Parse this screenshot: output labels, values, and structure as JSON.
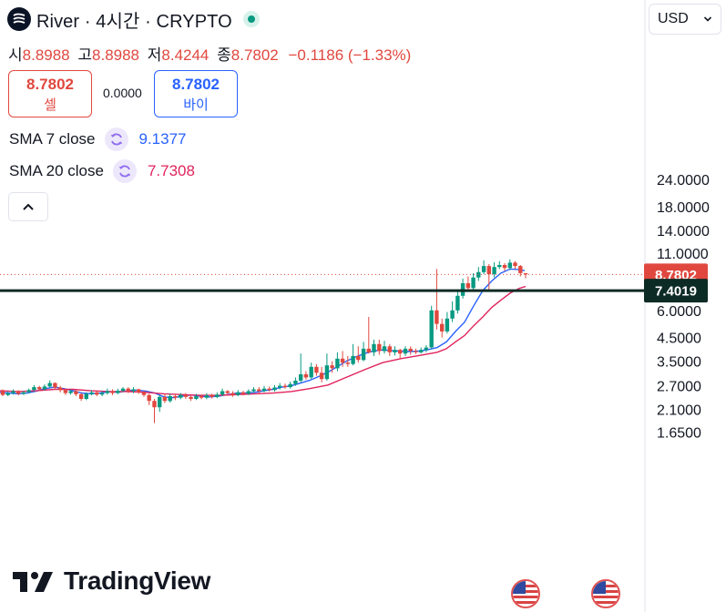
{
  "header": {
    "title": "River · 4시간 · CRYPTO",
    "ohlc": [
      {
        "label": "시",
        "value": "8.8988"
      },
      {
        "label": "고",
        "value": "8.8988"
      },
      {
        "label": "저",
        "value": "8.4244"
      },
      {
        "label": "종",
        "value": "8.7802"
      }
    ],
    "change": "−0.1186 (−1.33%)"
  },
  "trade": {
    "sell_price": "8.7802",
    "sell_label": "셀",
    "spread": "0.0000",
    "buy_price": "8.7802",
    "buy_label": "바이"
  },
  "indicators": [
    {
      "name": "SMA 7 close",
      "value": "9.1377",
      "color": "#2962ff"
    },
    {
      "name": "SMA 20 close",
      "value": "7.7308",
      "color": "#e0245e"
    }
  ],
  "currency": "USD",
  "brand": "TradingView",
  "colors": {
    "up": "#089981",
    "down": "#e0483f",
    "hline": "#0d2b25"
  },
  "chart_data": {
    "type": "candlestick",
    "yscale": "log",
    "ylim": [
      1.45,
      36
    ],
    "y_ticks": [
      "24.0000",
      "18.0000",
      "14.0000",
      "11.0000",
      "8.0000",
      "6.0000",
      "4.5000",
      "3.5000",
      "2.7000",
      "2.1000",
      "1.6500"
    ],
    "last_price": 8.7802,
    "last_price_label": "8.7802",
    "hline": 7.4019,
    "hline_label": "7.4019",
    "series": [
      {
        "name": "SMA 7 close",
        "color": "#2962ff",
        "points": [
          [
            0,
            2.52
          ],
          [
            10,
            2.5
          ],
          [
            20,
            2.48
          ],
          [
            30,
            2.5
          ],
          [
            40,
            2.55
          ],
          [
            50,
            2.62
          ],
          [
            60,
            2.66
          ],
          [
            70,
            2.62
          ],
          [
            80,
            2.56
          ],
          [
            90,
            2.5
          ],
          [
            100,
            2.48
          ],
          [
            110,
            2.5
          ],
          [
            120,
            2.54
          ],
          [
            130,
            2.52
          ],
          [
            140,
            2.56
          ],
          [
            150,
            2.58
          ],
          [
            160,
            2.55
          ],
          [
            170,
            2.5
          ],
          [
            180,
            2.4
          ],
          [
            190,
            2.38
          ],
          [
            200,
            2.42
          ],
          [
            210,
            2.45
          ],
          [
            220,
            2.42
          ],
          [
            230,
            2.4
          ],
          [
            240,
            2.42
          ],
          [
            250,
            2.46
          ],
          [
            260,
            2.5
          ],
          [
            270,
            2.5
          ],
          [
            280,
            2.52
          ],
          [
            290,
            2.56
          ],
          [
            300,
            2.6
          ],
          [
            310,
            2.66
          ],
          [
            320,
            2.7
          ],
          [
            330,
            2.78
          ],
          [
            340,
            2.86
          ],
          [
            350,
            2.98
          ],
          [
            360,
            3.12
          ],
          [
            370,
            3.3
          ],
          [
            380,
            3.5
          ],
          [
            390,
            3.66
          ],
          [
            400,
            3.8
          ],
          [
            410,
            3.9
          ],
          [
            420,
            3.95
          ],
          [
            430,
            3.92
          ],
          [
            440,
            3.9
          ],
          [
            450,
            3.88
          ],
          [
            460,
            3.9
          ],
          [
            470,
            3.96
          ],
          [
            480,
            4.05
          ],
          [
            490,
            4.3
          ],
          [
            500,
            4.8
          ],
          [
            510,
            5.3
          ],
          [
            520,
            6.3
          ],
          [
            530,
            7.4
          ],
          [
            540,
            8.2
          ],
          [
            550,
            8.9
          ],
          [
            560,
            9.3
          ],
          [
            570,
            9.25
          ],
          [
            576,
            9.14
          ]
        ]
      },
      {
        "name": "SMA 20 close",
        "color": "#e0245e",
        "points": [
          [
            0,
            2.56
          ],
          [
            20,
            2.54
          ],
          [
            40,
            2.56
          ],
          [
            60,
            2.6
          ],
          [
            80,
            2.6
          ],
          [
            100,
            2.56
          ],
          [
            120,
            2.54
          ],
          [
            140,
            2.54
          ],
          [
            160,
            2.52
          ],
          [
            180,
            2.48
          ],
          [
            200,
            2.46
          ],
          [
            220,
            2.44
          ],
          [
            240,
            2.44
          ],
          [
            260,
            2.46
          ],
          [
            280,
            2.48
          ],
          [
            300,
            2.5
          ],
          [
            320,
            2.54
          ],
          [
            340,
            2.62
          ],
          [
            360,
            2.72
          ],
          [
            380,
            2.95
          ],
          [
            400,
            3.2
          ],
          [
            420,
            3.45
          ],
          [
            440,
            3.6
          ],
          [
            460,
            3.72
          ],
          [
            480,
            3.85
          ],
          [
            490,
            4.0
          ],
          [
            500,
            4.3
          ],
          [
            510,
            4.6
          ],
          [
            520,
            5.1
          ],
          [
            530,
            5.6
          ],
          [
            540,
            6.2
          ],
          [
            550,
            6.7
          ],
          [
            560,
            7.2
          ],
          [
            570,
            7.58
          ],
          [
            577,
            7.73
          ]
        ]
      }
    ],
    "candles": [
      [
        2.55,
        2.45,
        2.6,
        2.42
      ],
      [
        2.45,
        2.5,
        2.55,
        2.42
      ],
      [
        2.5,
        2.55,
        2.6,
        2.46
      ],
      [
        2.55,
        2.48,
        2.58,
        2.44
      ],
      [
        2.48,
        2.52,
        2.56,
        2.45
      ],
      [
        2.52,
        2.58,
        2.62,
        2.5
      ],
      [
        2.58,
        2.66,
        2.72,
        2.55
      ],
      [
        2.66,
        2.6,
        2.7,
        2.56
      ],
      [
        2.6,
        2.68,
        2.74,
        2.57
      ],
      [
        2.68,
        2.78,
        2.86,
        2.64
      ],
      [
        2.78,
        2.65,
        2.8,
        2.6
      ],
      [
        2.65,
        2.58,
        2.7,
        2.52
      ],
      [
        2.58,
        2.5,
        2.62,
        2.45
      ],
      [
        2.5,
        2.55,
        2.6,
        2.46
      ],
      [
        2.55,
        2.47,
        2.58,
        2.42
      ],
      [
        2.47,
        2.35,
        2.5,
        2.3
      ],
      [
        2.35,
        2.48,
        2.52,
        2.32
      ],
      [
        2.48,
        2.52,
        2.58,
        2.44
      ],
      [
        2.52,
        2.46,
        2.56,
        2.42
      ],
      [
        2.46,
        2.5,
        2.55,
        2.42
      ],
      [
        2.5,
        2.55,
        2.62,
        2.46
      ],
      [
        2.55,
        2.5,
        2.6,
        2.45
      ],
      [
        2.5,
        2.56,
        2.62,
        2.47
      ],
      [
        2.56,
        2.62,
        2.66,
        2.52
      ],
      [
        2.62,
        2.55,
        2.66,
        2.5
      ],
      [
        2.55,
        2.6,
        2.66,
        2.5
      ],
      [
        2.6,
        2.52,
        2.62,
        2.48
      ],
      [
        2.52,
        2.45,
        2.56,
        2.4
      ],
      [
        2.45,
        2.3,
        2.48,
        2.2
      ],
      [
        2.3,
        2.15,
        2.35,
        1.82
      ],
      [
        2.15,
        2.4,
        2.45,
        2.05
      ],
      [
        2.4,
        2.3,
        2.48,
        2.25
      ],
      [
        2.3,
        2.42,
        2.48,
        2.26
      ],
      [
        2.42,
        2.38,
        2.48,
        2.32
      ],
      [
        2.38,
        2.45,
        2.5,
        2.34
      ],
      [
        2.45,
        2.4,
        2.5,
        2.35
      ],
      [
        2.4,
        2.35,
        2.44,
        2.3
      ],
      [
        2.35,
        2.42,
        2.48,
        2.32
      ],
      [
        2.42,
        2.38,
        2.46,
        2.34
      ],
      [
        2.38,
        2.44,
        2.5,
        2.34
      ],
      [
        2.44,
        2.4,
        2.48,
        2.36
      ],
      [
        2.4,
        2.46,
        2.52,
        2.37
      ],
      [
        2.46,
        2.55,
        2.62,
        2.42
      ],
      [
        2.55,
        2.5,
        2.58,
        2.46
      ],
      [
        2.5,
        2.45,
        2.55,
        2.4
      ],
      [
        2.45,
        2.52,
        2.58,
        2.42
      ],
      [
        2.52,
        2.48,
        2.56,
        2.44
      ],
      [
        2.48,
        2.55,
        2.6,
        2.45
      ],
      [
        2.55,
        2.6,
        2.66,
        2.5
      ],
      [
        2.6,
        2.55,
        2.66,
        2.5
      ],
      [
        2.55,
        2.62,
        2.7,
        2.52
      ],
      [
        2.62,
        2.58,
        2.68,
        2.54
      ],
      [
        2.58,
        2.65,
        2.72,
        2.54
      ],
      [
        2.65,
        2.7,
        2.78,
        2.6
      ],
      [
        2.7,
        2.66,
        2.76,
        2.62
      ],
      [
        2.66,
        2.75,
        2.82,
        2.62
      ],
      [
        2.75,
        2.85,
        2.95,
        2.7
      ],
      [
        2.85,
        3.05,
        3.8,
        2.8
      ],
      [
        3.05,
        2.95,
        3.15,
        2.88
      ],
      [
        2.95,
        3.3,
        3.45,
        2.9
      ],
      [
        3.3,
        3.1,
        3.4,
        3.0
      ],
      [
        3.1,
        2.9,
        3.3,
        2.8
      ],
      [
        2.9,
        3.35,
        3.8,
        2.85
      ],
      [
        3.35,
        3.25,
        3.5,
        3.1
      ],
      [
        3.25,
        3.6,
        3.85,
        3.15
      ],
      [
        3.6,
        3.45,
        3.9,
        3.3
      ],
      [
        3.45,
        3.4,
        3.7,
        3.3
      ],
      [
        3.4,
        3.7,
        4.2,
        3.35
      ],
      [
        3.7,
        3.55,
        4.1,
        3.45
      ],
      [
        3.55,
        4.0,
        4.3,
        3.5
      ],
      [
        4.0,
        3.85,
        5.6,
        3.8
      ],
      [
        3.85,
        4.2,
        4.4,
        3.7
      ],
      [
        4.2,
        3.9,
        4.4,
        3.75
      ],
      [
        3.9,
        4.1,
        4.35,
        3.8
      ],
      [
        4.1,
        3.85,
        4.2,
        3.7
      ],
      [
        3.85,
        3.95,
        4.1,
        3.72
      ],
      [
        3.95,
        3.8,
        4.0,
        3.6
      ],
      [
        3.8,
        4.0,
        4.1,
        3.7
      ],
      [
        4.0,
        3.9,
        4.1,
        3.75
      ],
      [
        3.9,
        3.85,
        4.0,
        3.78
      ],
      [
        3.85,
        3.95,
        4.05,
        3.8
      ],
      [
        3.95,
        4.05,
        4.15,
        3.85
      ],
      [
        4.05,
        6.0,
        6.3,
        4.0
      ],
      [
        6.0,
        5.2,
        9.3,
        4.9
      ],
      [
        5.2,
        4.8,
        5.5,
        4.5
      ],
      [
        4.8,
        5.5,
        5.9,
        4.7
      ],
      [
        5.5,
        6.0,
        6.6,
        5.3
      ],
      [
        6.0,
        7.0,
        7.5,
        5.8
      ],
      [
        7.0,
        8.0,
        8.4,
        6.8
      ],
      [
        8.0,
        7.6,
        8.6,
        7.3
      ],
      [
        7.6,
        8.5,
        8.9,
        7.3
      ],
      [
        8.5,
        9.0,
        9.5,
        8.2
      ],
      [
        9.0,
        9.6,
        10.2,
        8.8
      ],
      [
        9.6,
        8.8,
        9.8,
        7.5
      ],
      [
        8.8,
        9.5,
        10.0,
        8.5
      ],
      [
        9.5,
        9.7,
        10.1,
        9.3
      ],
      [
        9.7,
        9.4,
        9.9,
        9.1
      ],
      [
        9.4,
        9.95,
        10.3,
        9.2
      ],
      [
        9.95,
        9.6,
        10.1,
        9.3
      ],
      [
        9.6,
        8.9,
        9.7,
        8.6
      ],
      [
        8.899,
        8.78,
        8.899,
        8.424
      ]
    ]
  }
}
